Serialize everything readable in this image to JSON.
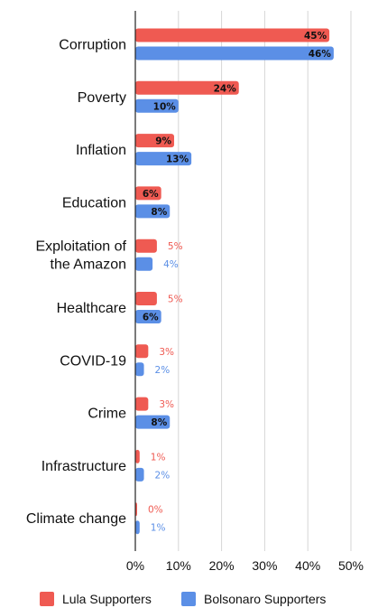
{
  "chart_data": {
    "type": "bar",
    "orientation": "horizontal",
    "title": "",
    "xlabel": "",
    "ylabel": "",
    "xlim": [
      0,
      50
    ],
    "x_ticks": [
      "0%",
      "10%",
      "20%",
      "30%",
      "40%",
      "50%"
    ],
    "grid": true,
    "legend_position": "bottom",
    "categories": [
      [
        "Corruption"
      ],
      [
        "Poverty"
      ],
      [
        "Inflation"
      ],
      [
        "Education"
      ],
      [
        "Exploitation of",
        "the Amazon"
      ],
      [
        "Healthcare"
      ],
      [
        "COVID-19"
      ],
      [
        "Crime"
      ],
      [
        "Infrastructure"
      ],
      [
        "Climate change"
      ]
    ],
    "series": [
      {
        "name": "Lula Supporters",
        "color": "#ef5a52",
        "values": [
          45,
          24,
          9,
          6,
          5,
          5,
          3,
          3,
          1,
          0
        ],
        "labels": [
          "45%",
          "24%",
          "9%",
          "6%",
          "5%",
          "5%",
          "3%",
          "3%",
          "1%",
          "0%"
        ]
      },
      {
        "name": "Bolsonaro Supporters",
        "color": "#5b8fe6",
        "values": [
          46,
          10,
          13,
          8,
          4,
          6,
          2,
          8,
          2,
          1
        ],
        "labels": [
          "46%",
          "10%",
          "13%",
          "8%",
          "4%",
          "6%",
          "2%",
          "8%",
          "2%",
          "1%"
        ]
      }
    ]
  }
}
